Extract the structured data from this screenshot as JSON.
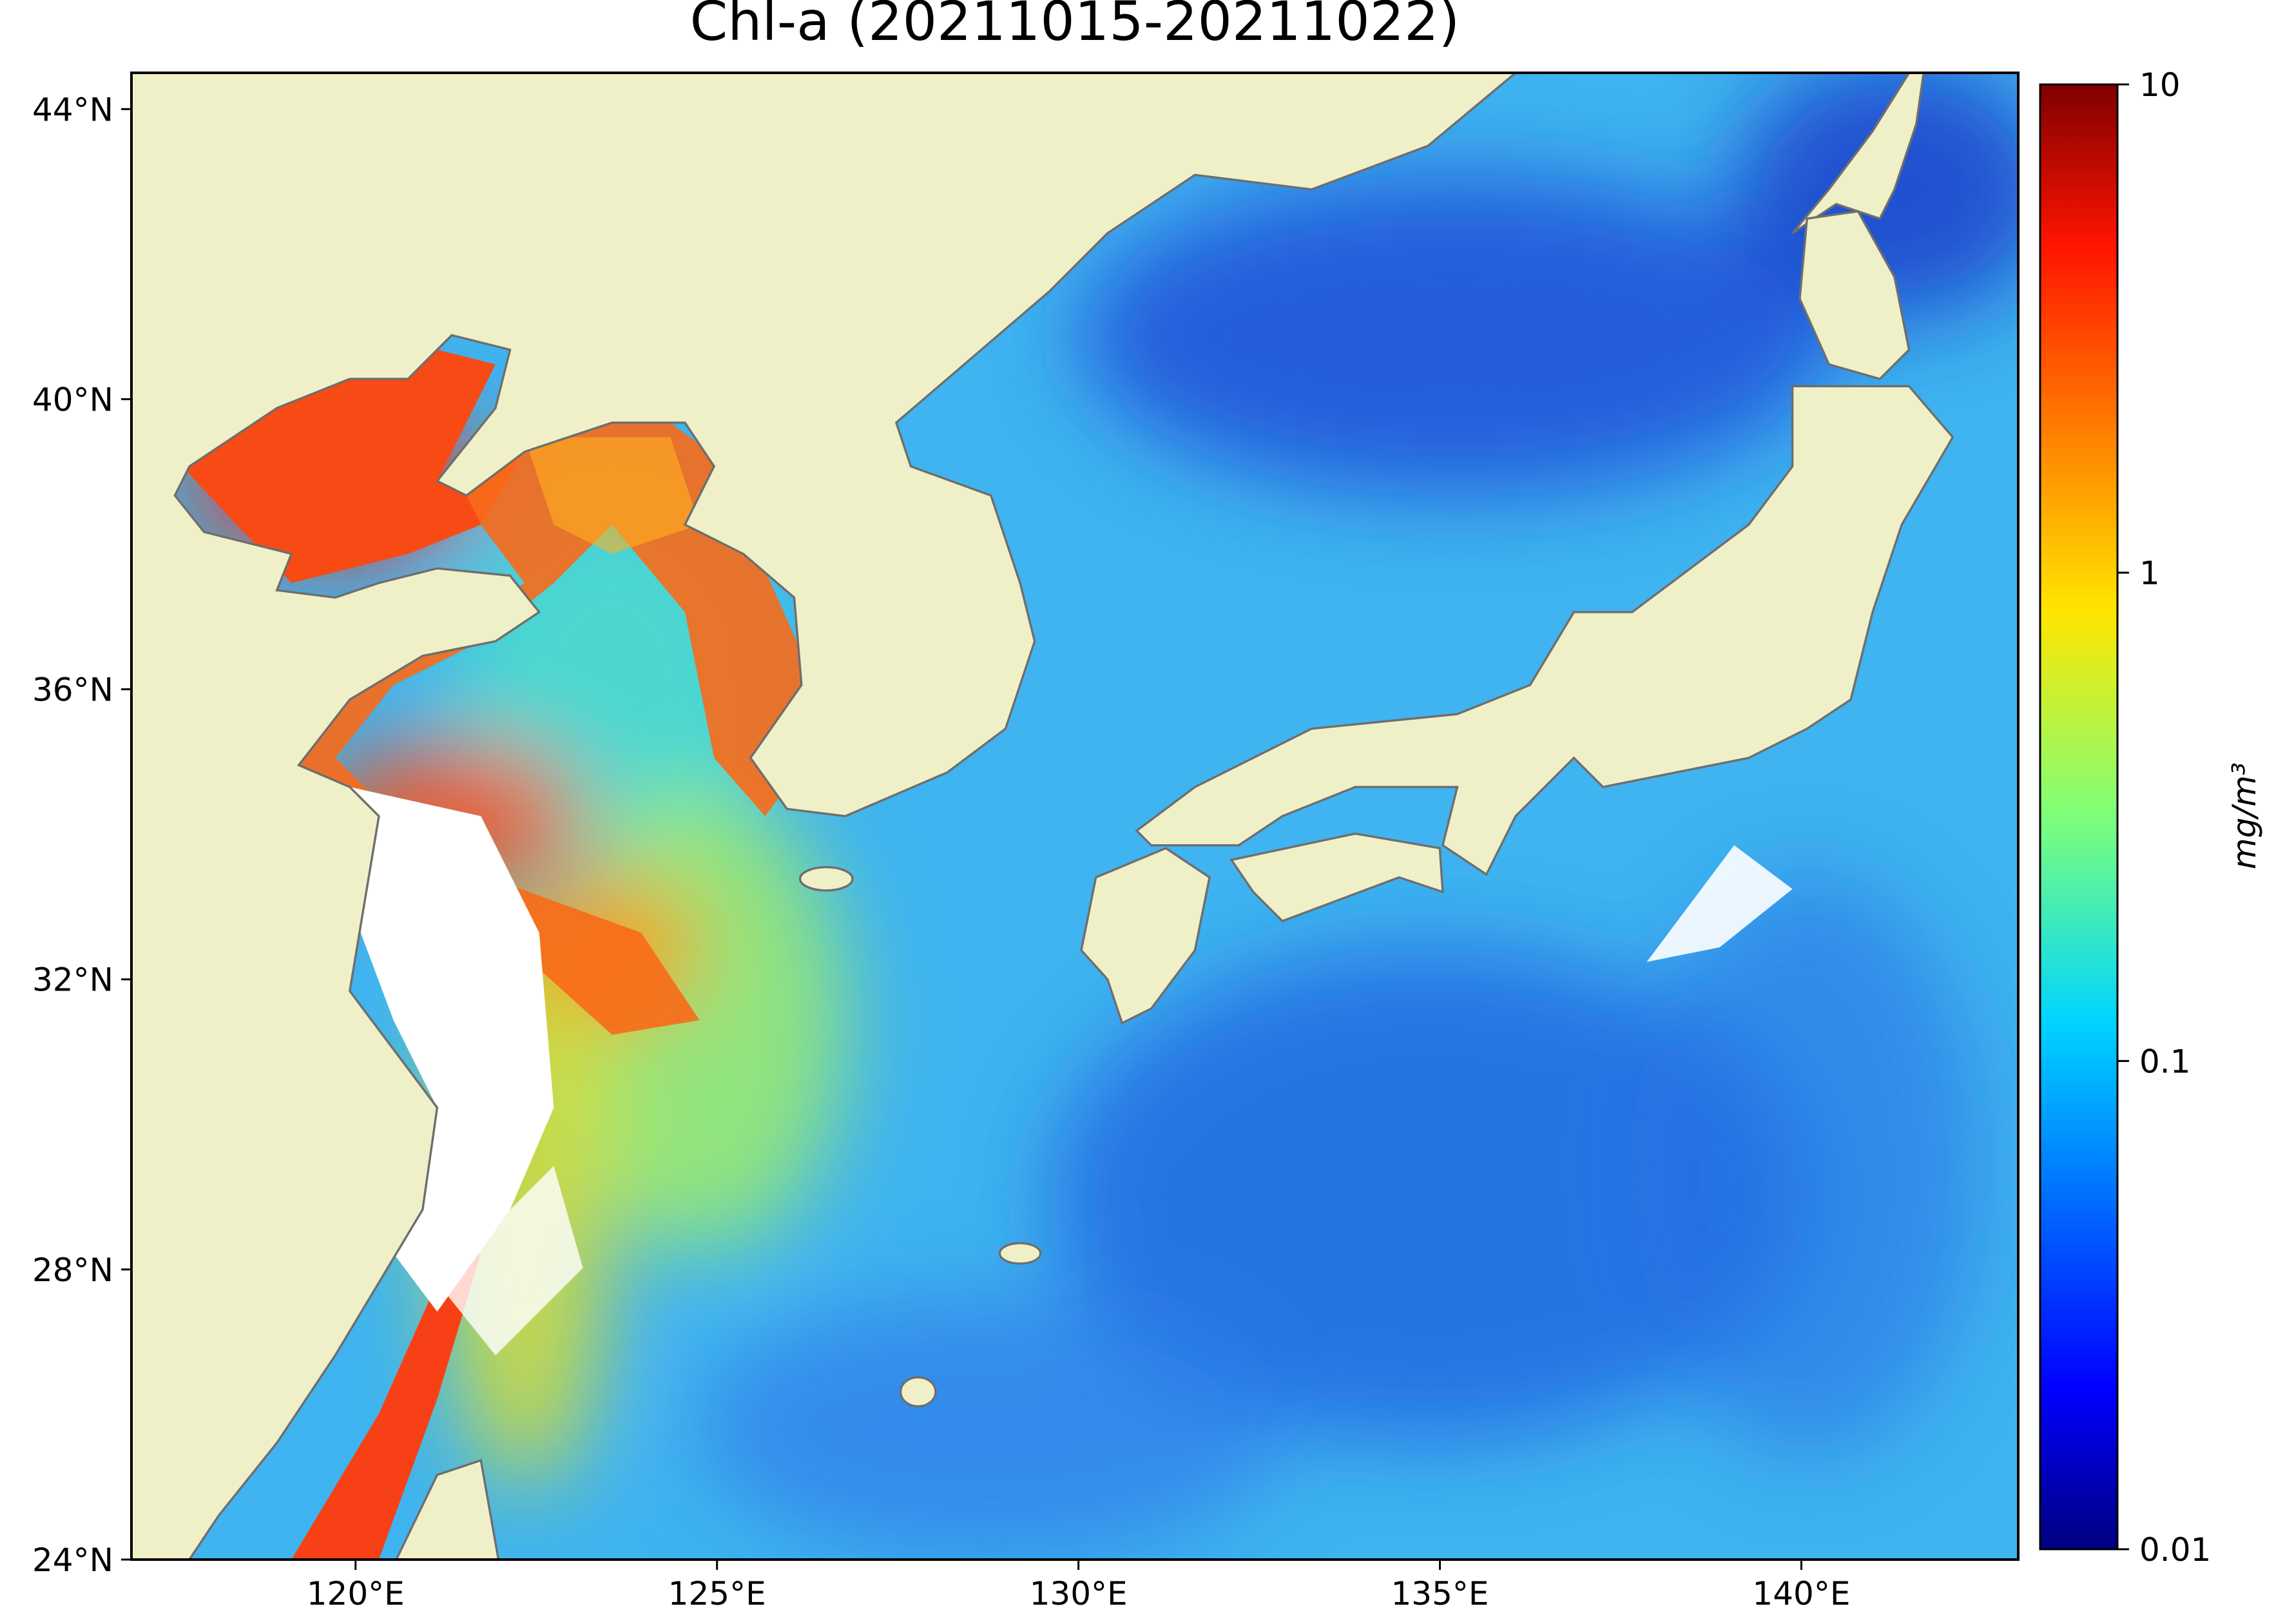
{
  "chart_data": {
    "type": "map",
    "title": "Chl-a (20211015-20211022)",
    "xlim": [
      116.9,
      143
    ],
    "ylim": [
      24,
      44.5
    ],
    "xticks": [
      {
        "value": 120,
        "label": "120°E"
      },
      {
        "value": 125,
        "label": "125°E"
      },
      {
        "value": 130,
        "label": "130°E"
      },
      {
        "value": 135,
        "label": "135°E"
      },
      {
        "value": 140,
        "label": "140°E"
      }
    ],
    "yticks": [
      {
        "value": 24,
        "label": "24°N"
      },
      {
        "value": 28,
        "label": "28°N"
      },
      {
        "value": 32,
        "label": "32°N"
      },
      {
        "value": 36,
        "label": "36°N"
      },
      {
        "value": 40,
        "label": "40°N"
      },
      {
        "value": 44,
        "label": "44°N"
      }
    ],
    "colorbar": {
      "label": "mg/m³",
      "clim": [
        0.01,
        10
      ],
      "log_scale": true,
      "colormap": "jet",
      "ticks": [
        0.01,
        0.1,
        1,
        10
      ]
    }
  }
}
